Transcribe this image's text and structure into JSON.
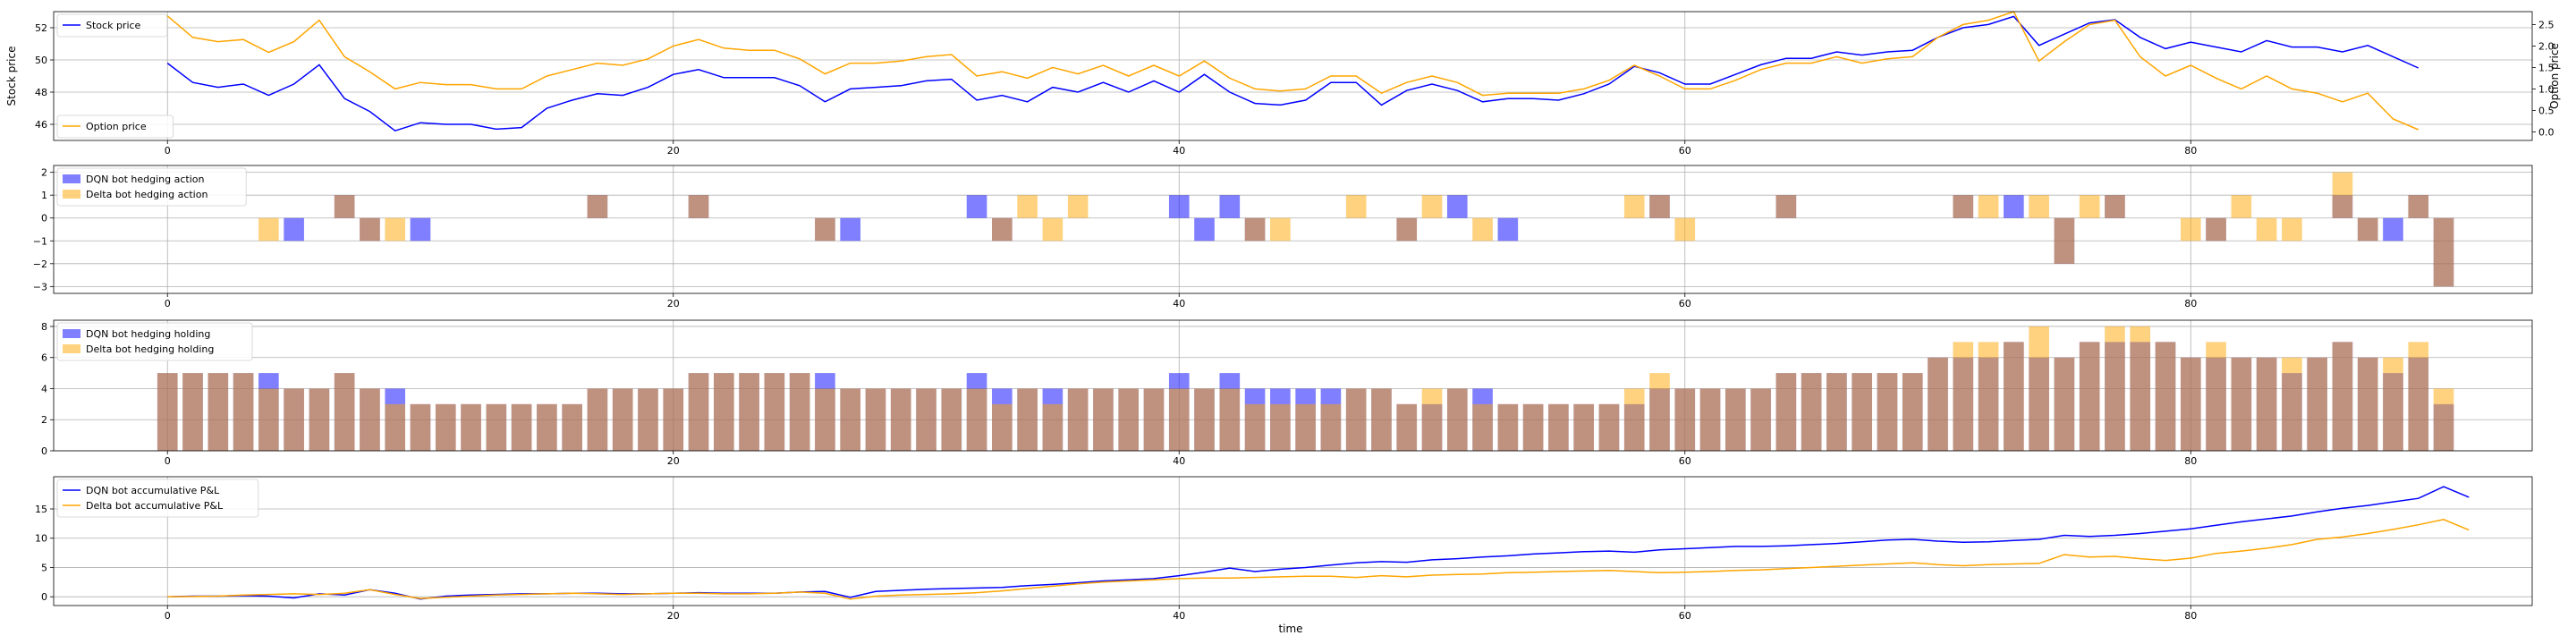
{
  "figure": {
    "xlabel": "time"
  },
  "colors": {
    "blue": "#0000ff",
    "orange": "#ffa500",
    "brown": "#b0826e",
    "grid": "#b0b0b0"
  },
  "chart_data": [
    {
      "type": "line",
      "panel": "price",
      "ylabel": "Stock price",
      "ylabel_right": "Option price",
      "xlim": [
        -4.5,
        93.5
      ],
      "ylim": [
        45.0,
        53.0
      ],
      "ylim_right": [
        -0.2,
        2.8
      ],
      "xticks": [
        0,
        20,
        40,
        60,
        80
      ],
      "yticks": [
        46,
        48,
        50,
        52
      ],
      "yticks_right": [
        0.0,
        0.5,
        1.0,
        1.5,
        2.0,
        2.5
      ],
      "grid": true,
      "legend_left_top": "upper left",
      "legend_left_bottom": "lower left",
      "series": [
        {
          "name": "Stock price",
          "axis": "left",
          "color": "blue",
          "values": [
            49.8,
            48.6,
            48.3,
            48.5,
            47.8,
            48.5,
            49.7,
            47.6,
            46.8,
            45.6,
            46.1,
            46.0,
            46.0,
            45.7,
            45.8,
            47.0,
            47.5,
            47.9,
            47.8,
            48.3,
            49.1,
            49.4,
            48.9,
            48.9,
            48.9,
            48.4,
            47.4,
            48.2,
            48.3,
            48.4,
            48.7,
            48.8,
            47.5,
            47.8,
            47.4,
            48.3,
            48.0,
            48.6,
            48.0,
            48.7,
            48.0,
            49.1,
            48.0,
            47.3,
            47.2,
            47.5,
            48.6,
            48.6,
            47.2,
            48.1,
            48.5,
            48.1,
            47.4,
            47.6,
            47.6,
            47.5,
            47.9,
            48.5,
            49.6,
            49.2,
            48.5,
            48.5,
            49.1,
            49.7,
            50.1,
            50.1,
            50.5,
            50.3,
            50.5,
            50.6,
            51.4,
            52.0,
            52.2,
            52.7,
            50.9,
            51.6,
            52.3,
            52.5,
            51.4,
            50.7,
            51.1,
            50.8,
            50.5,
            51.2,
            50.8,
            50.8,
            50.5,
            50.9,
            50.2,
            49.5
          ]
        },
        {
          "name": "Option price",
          "axis": "right",
          "color": "orange",
          "values": [
            2.7,
            2.2,
            2.1,
            2.15,
            1.85,
            2.1,
            2.6,
            1.75,
            1.4,
            1.0,
            1.15,
            1.1,
            1.1,
            1.0,
            1.0,
            1.3,
            1.45,
            1.6,
            1.55,
            1.7,
            2.0,
            2.15,
            1.95,
            1.9,
            1.9,
            1.7,
            1.35,
            1.6,
            1.6,
            1.65,
            1.75,
            1.8,
            1.3,
            1.4,
            1.25,
            1.5,
            1.35,
            1.55,
            1.3,
            1.55,
            1.3,
            1.65,
            1.25,
            1.0,
            0.95,
            1.0,
            1.3,
            1.3,
            0.9,
            1.15,
            1.3,
            1.15,
            0.85,
            0.9,
            0.9,
            0.9,
            1.0,
            1.2,
            1.55,
            1.3,
            1.0,
            1.0,
            1.2,
            1.45,
            1.6,
            1.6,
            1.75,
            1.6,
            1.7,
            1.75,
            2.2,
            2.5,
            2.6,
            2.8,
            1.65,
            2.1,
            2.5,
            2.6,
            1.75,
            1.3,
            1.55,
            1.25,
            1.0,
            1.3,
            1.0,
            0.9,
            0.7,
            0.9,
            0.3,
            0.05
          ]
        }
      ]
    },
    {
      "type": "bar",
      "panel": "action",
      "xlim": [
        -4.5,
        93.5
      ],
      "ylim": [
        -3.3,
        2.3
      ],
      "xticks": [
        0,
        20,
        40,
        60,
        80
      ],
      "yticks": [
        -3,
        -2,
        -1,
        0,
        1,
        2
      ],
      "grid": true,
      "legend": "upper left",
      "series": [
        {
          "name": "DQN bot hedging action",
          "color": "blue",
          "alpha": 0.5,
          "values": [
            0,
            0,
            0,
            0,
            0,
            -1,
            0,
            1,
            -1,
            0,
            -1,
            0,
            0,
            0,
            0,
            0,
            0,
            1,
            0,
            0,
            0,
            1,
            0,
            0,
            0,
            0,
            -1,
            -1,
            0,
            0,
            0,
            0,
            1,
            -1,
            0,
            0,
            0,
            0,
            0,
            0,
            1,
            -1,
            1,
            -1,
            0,
            0,
            0,
            0,
            0,
            -1,
            0,
            1,
            0,
            -1,
            0,
            0,
            0,
            0,
            0,
            1,
            0,
            0,
            0,
            0,
            1,
            0,
            0,
            0,
            0,
            0,
            0,
            1,
            0,
            1,
            0,
            -2,
            0,
            1,
            0,
            0,
            0,
            -1,
            0,
            0,
            0,
            0,
            1,
            -1,
            -1,
            1,
            -3
          ]
        },
        {
          "name": "Delta bot hedging action",
          "color": "orange",
          "alpha": 0.5,
          "values": [
            0,
            0,
            0,
            0,
            -1,
            0,
            0,
            1,
            -1,
            -1,
            0,
            0,
            0,
            0,
            0,
            0,
            0,
            1,
            0,
            0,
            0,
            1,
            0,
            0,
            0,
            0,
            -1,
            0,
            0,
            0,
            0,
            0,
            0,
            -1,
            1,
            -1,
            1,
            0,
            0,
            0,
            0,
            0,
            0,
            -1,
            -1,
            0,
            0,
            1,
            0,
            -1,
            1,
            0,
            -1,
            0,
            0,
            0,
            0,
            0,
            1,
            1,
            -1,
            0,
            0,
            0,
            1,
            0,
            0,
            0,
            0,
            0,
            0,
            1,
            1,
            0,
            1,
            -2,
            1,
            1,
            0,
            0,
            -1,
            -1,
            1,
            -1,
            -1,
            0,
            2,
            -1,
            0,
            1,
            -3
          ]
        }
      ]
    },
    {
      "type": "bar",
      "panel": "holding",
      "xlim": [
        -4.5,
        93.5
      ],
      "ylim": [
        0,
        8.4
      ],
      "xticks": [
        0,
        20,
        40,
        60,
        80
      ],
      "yticks": [
        0,
        2,
        4,
        6,
        8
      ],
      "grid": true,
      "legend": "upper left",
      "series": [
        {
          "name": "DQN bot hedging holding",
          "color": "blue",
          "alpha": 0.5,
          "values": [
            5,
            5,
            5,
            5,
            5,
            4,
            4,
            5,
            4,
            4,
            3,
            3,
            3,
            3,
            3,
            3,
            3,
            4,
            4,
            4,
            4,
            5,
            5,
            5,
            5,
            5,
            5,
            4,
            4,
            4,
            4,
            4,
            5,
            4,
            4,
            4,
            4,
            4,
            4,
            4,
            5,
            4,
            5,
            4,
            4,
            4,
            4,
            4,
            4,
            3,
            3,
            4,
            4,
            3,
            3,
            3,
            3,
            3,
            3,
            4,
            4,
            4,
            4,
            4,
            5,
            5,
            5,
            5,
            5,
            5,
            6,
            6,
            6,
            7,
            6,
            6,
            7,
            7,
            7,
            7,
            6,
            6,
            6,
            6,
            5,
            6,
            7,
            6,
            5,
            6,
            3
          ]
        },
        {
          "name": "Delta bot hedging holding",
          "color": "orange",
          "alpha": 0.5,
          "values": [
            5,
            5,
            5,
            5,
            4,
            4,
            4,
            5,
            4,
            3,
            3,
            3,
            3,
            3,
            3,
            3,
            3,
            4,
            4,
            4,
            4,
            5,
            5,
            5,
            5,
            5,
            4,
            4,
            4,
            4,
            4,
            4,
            4,
            3,
            4,
            3,
            4,
            4,
            4,
            4,
            4,
            4,
            4,
            3,
            3,
            3,
            3,
            4,
            4,
            3,
            4,
            4,
            3,
            3,
            3,
            3,
            3,
            3,
            4,
            5,
            4,
            4,
            4,
            4,
            5,
            5,
            5,
            5,
            5,
            5,
            6,
            7,
            7,
            7,
            8,
            6,
            7,
            8,
            8,
            7,
            6,
            7,
            6,
            6,
            6,
            6,
            7,
            6,
            6,
            7,
            4
          ]
        }
      ]
    },
    {
      "type": "line",
      "panel": "pnl",
      "xlim": [
        -4.5,
        93.5
      ],
      "ylim": [
        -1.5,
        20.5
      ],
      "xticks": [
        0,
        20,
        40,
        60,
        80
      ],
      "yticks": [
        0,
        5,
        10,
        15
      ],
      "grid": true,
      "legend": "upper left",
      "series": [
        {
          "name": "DQN bot accumulative P&L",
          "color": "blue",
          "values": [
            0,
            0.1,
            0.1,
            0.2,
            0.1,
            -0.2,
            0.5,
            0.3,
            1.2,
            0.6,
            -0.4,
            0.1,
            0.3,
            0.4,
            0.5,
            0.5,
            0.6,
            0.6,
            0.5,
            0.5,
            0.6,
            0.7,
            0.6,
            0.6,
            0.6,
            0.8,
            0.9,
            -0.1,
            0.9,
            1.1,
            1.3,
            1.4,
            1.5,
            1.6,
            1.9,
            2.1,
            2.4,
            2.7,
            2.9,
            3.1,
            3.6,
            4.2,
            4.9,
            4.3,
            4.7,
            5.0,
            5.4,
            5.8,
            6.0,
            5.9,
            6.3,
            6.5,
            6.8,
            7.0,
            7.3,
            7.5,
            7.7,
            7.8,
            7.6,
            8.0,
            8.2,
            8.4,
            8.6,
            8.6,
            8.7,
            8.9,
            9.1,
            9.4,
            9.7,
            9.8,
            9.5,
            9.3,
            9.4,
            9.6,
            9.8,
            10.5,
            10.3,
            10.5,
            10.8,
            11.2,
            11.6,
            12.2,
            12.8,
            13.3,
            13.8,
            14.5,
            15.1,
            15.6,
            16.2,
            16.8,
            18.8,
            17.0
          ]
        },
        {
          "name": "Delta bot accumulative P&L",
          "color": "orange",
          "values": [
            0,
            0.05,
            0.1,
            0.3,
            0.4,
            0.5,
            0.4,
            0.6,
            1.2,
            0.4,
            -0.3,
            -0.1,
            0.1,
            0.3,
            0.4,
            0.5,
            0.6,
            0.5,
            0.4,
            0.5,
            0.6,
            0.6,
            0.5,
            0.5,
            0.6,
            0.8,
            0.6,
            -0.4,
            0.1,
            0.3,
            0.4,
            0.5,
            0.7,
            1.0,
            1.4,
            1.8,
            2.2,
            2.5,
            2.7,
            2.9,
            3.1,
            3.2,
            3.2,
            3.3,
            3.4,
            3.5,
            3.5,
            3.3,
            3.6,
            3.4,
            3.7,
            3.8,
            3.9,
            4.1,
            4.2,
            4.3,
            4.4,
            4.5,
            4.3,
            4.1,
            4.2,
            4.3,
            4.5,
            4.6,
            4.8,
            5.0,
            5.2,
            5.4,
            5.6,
            5.8,
            5.5,
            5.3,
            5.5,
            5.6,
            5.7,
            7.2,
            6.8,
            6.9,
            6.5,
            6.2,
            6.6,
            7.4,
            7.8,
            8.3,
            8.9,
            9.8,
            10.2,
            10.8,
            11.5,
            12.3,
            13.2,
            11.4
          ]
        }
      ]
    }
  ]
}
